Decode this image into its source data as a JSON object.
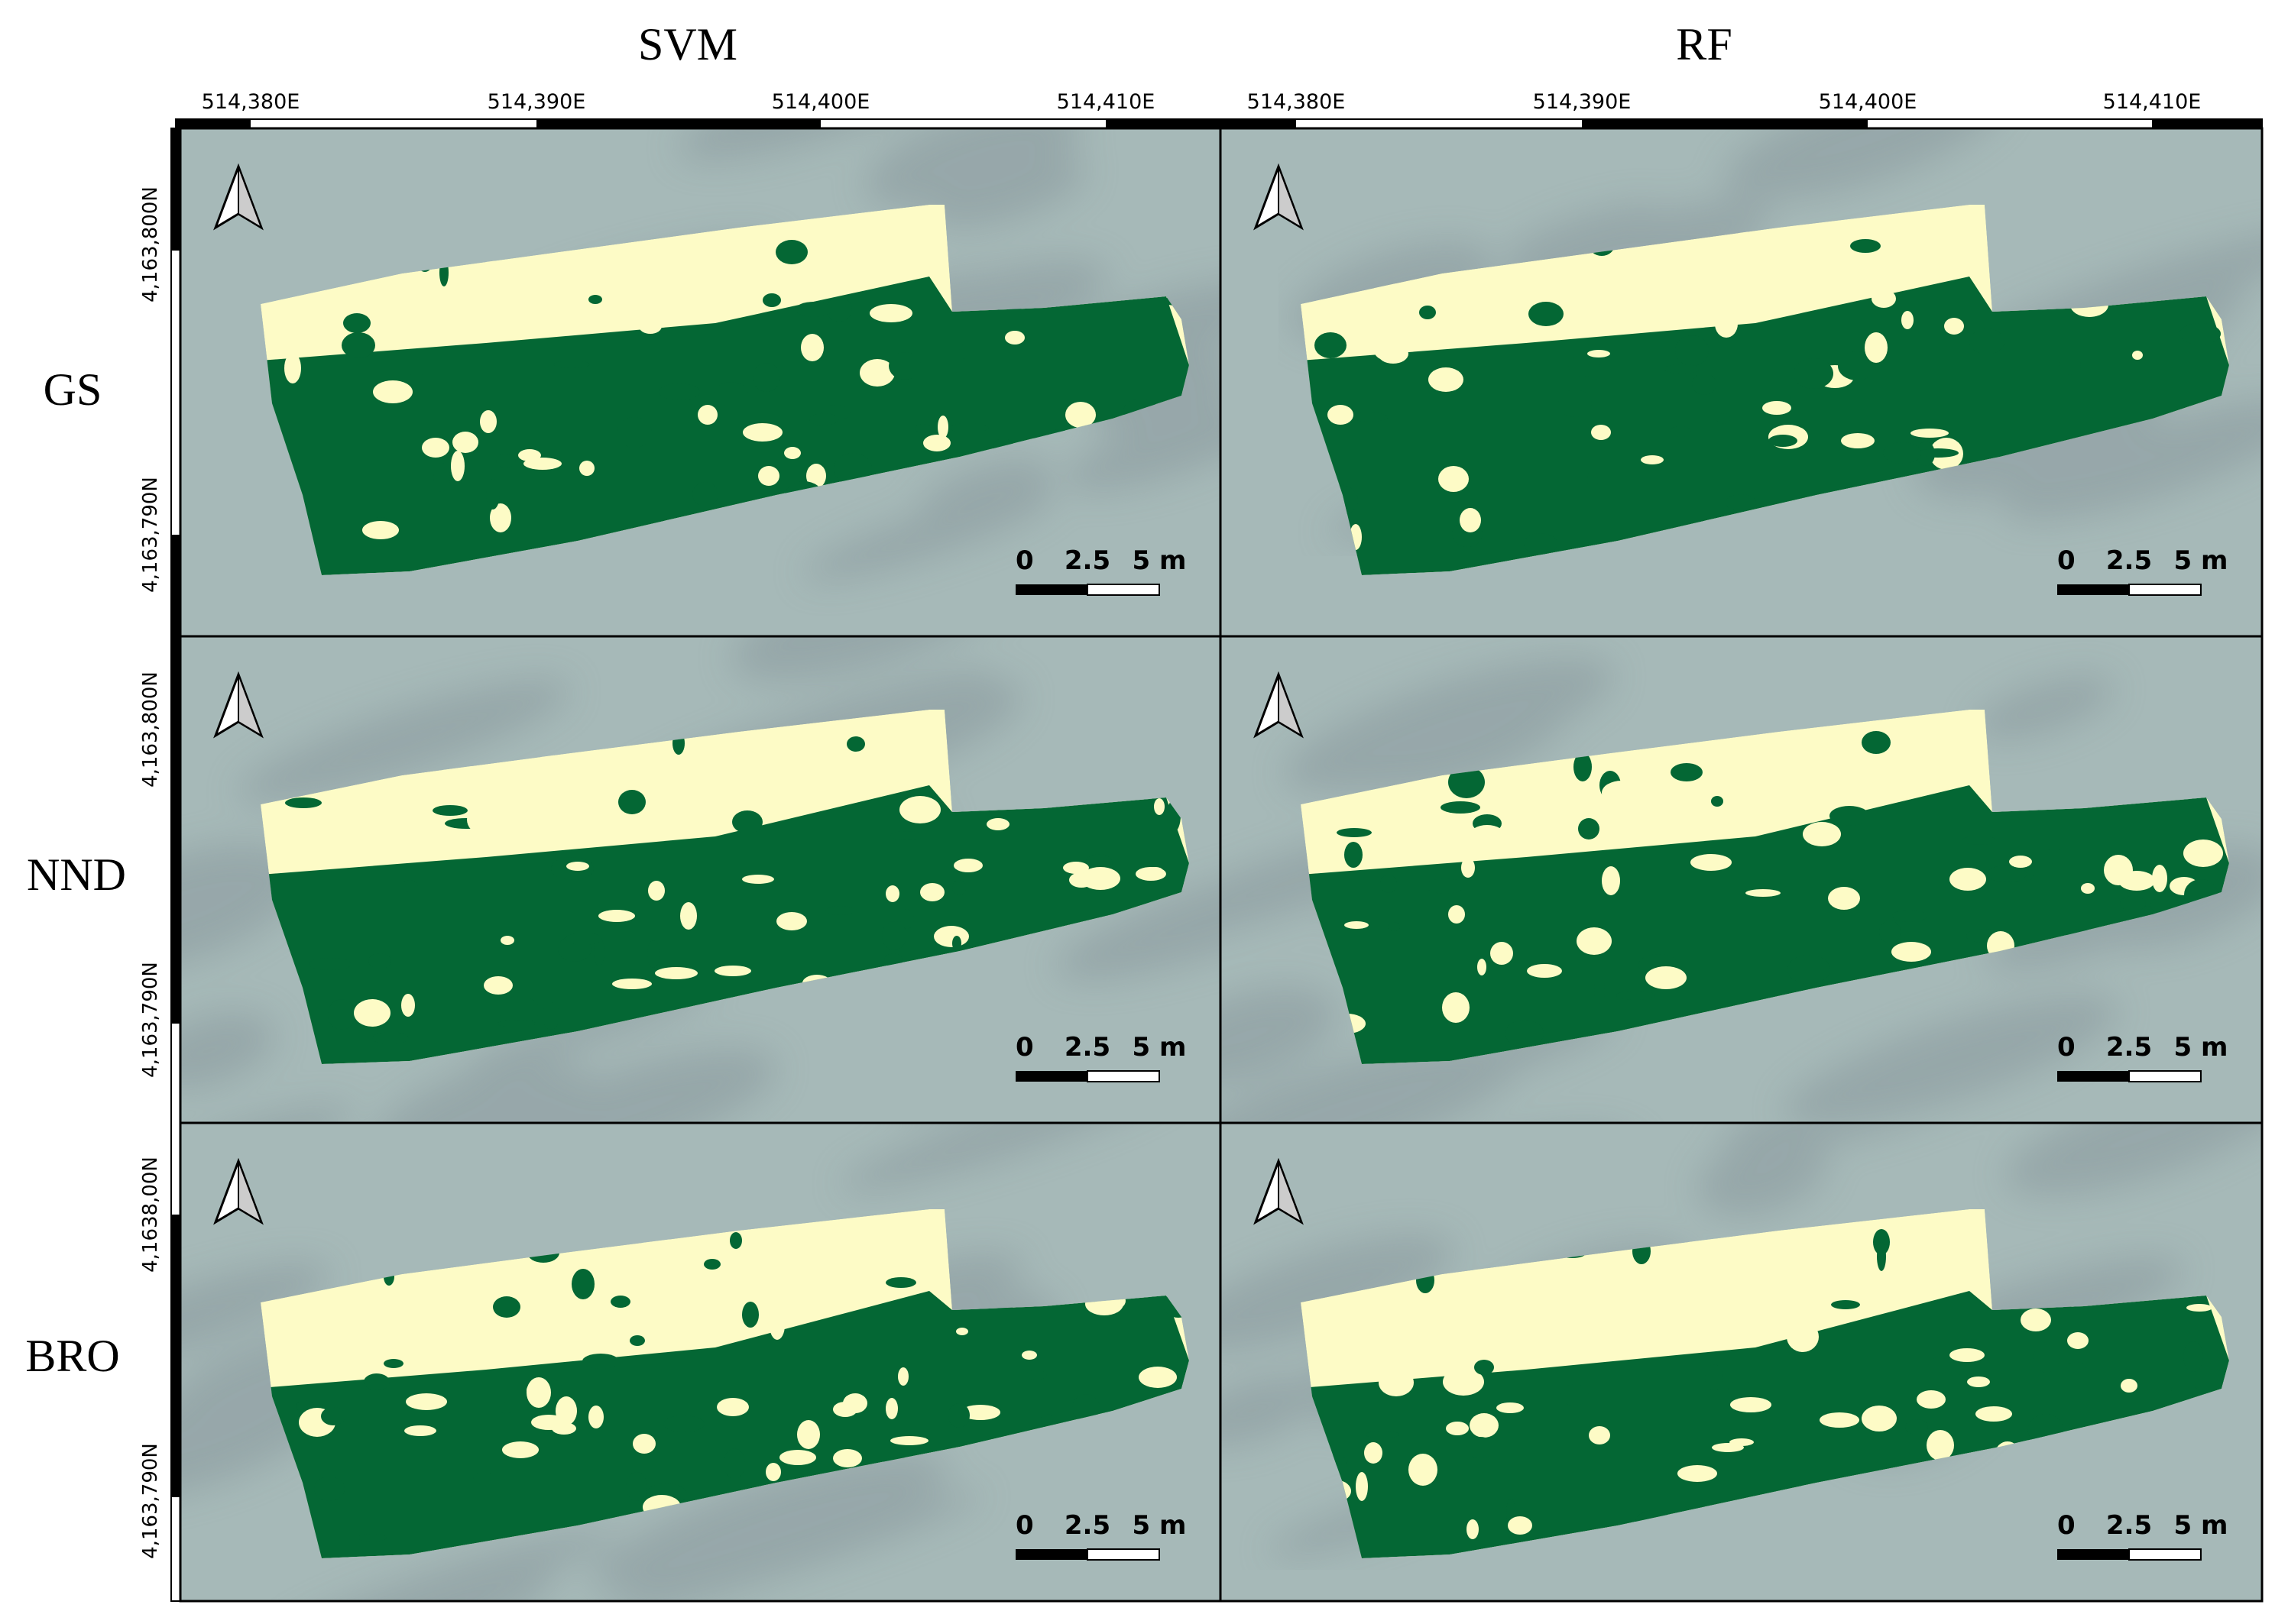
{
  "columns": [
    "SVM",
    "RF"
  ],
  "rows": [
    "GS",
    "NND",
    "BRO"
  ],
  "x_ticks": [
    "514,380E",
    "514,390E",
    "514,400E",
    "514,410E"
  ],
  "y_ticks": [
    [
      "4,163,800N",
      "4,163,790N"
    ],
    [
      "4,163,800N",
      "4,163,790N"
    ],
    [
      "4,1638,00N",
      "4,163,790N"
    ]
  ],
  "scale_bar": {
    "labels": [
      "0",
      "2.5",
      "5 m"
    ],
    "values_m": [
      0,
      2.5,
      5
    ]
  },
  "north_arrow": "north-arrow-icon",
  "colors": {
    "class_green": "#046734",
    "class_cream": "#fdfbc6",
    "basemap": "#a6b9b8",
    "basemap_dark": "#8a9a9e",
    "frame": "#000000"
  }
}
